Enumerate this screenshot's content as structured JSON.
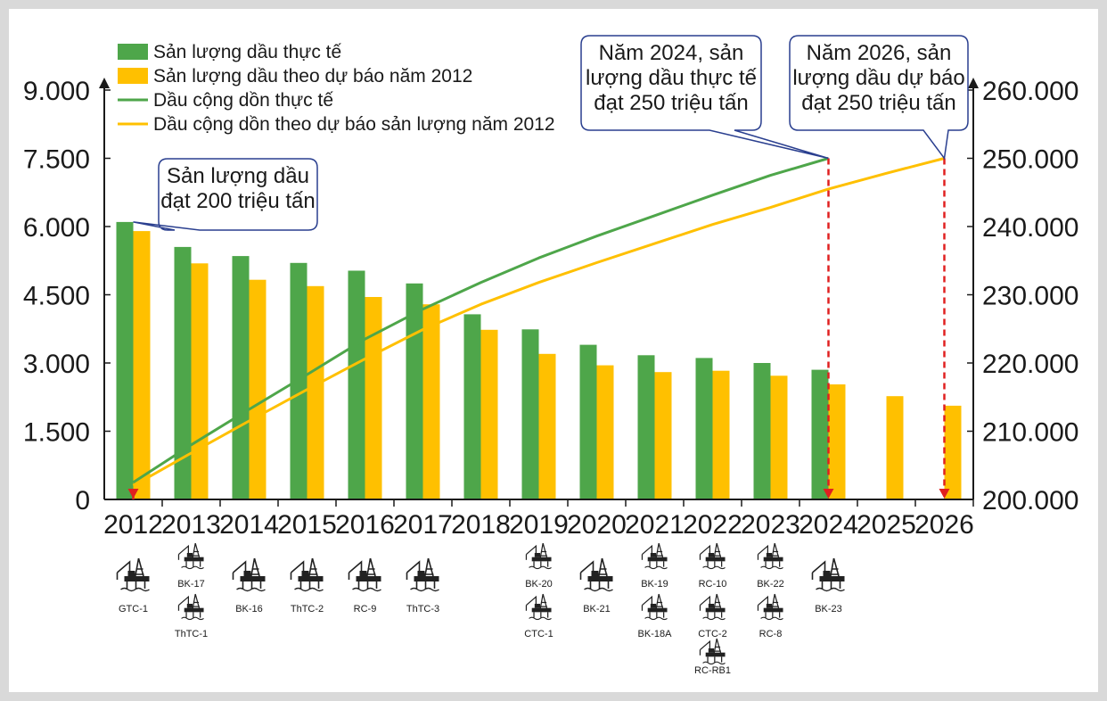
{
  "chart_data": {
    "type": "bar",
    "categories": [
      "2012",
      "2013",
      "2014",
      "2015",
      "2016",
      "2017",
      "2018",
      "2019",
      "2020",
      "2021",
      "2022",
      "2023",
      "2024",
      "2025",
      "2026"
    ],
    "y_left": {
      "range": [
        0,
        9000
      ],
      "ticks": [
        "0",
        "1.500",
        "3.000",
        "4.500",
        "6.000",
        "7.500",
        "9.000"
      ],
      "tick_values": [
        0,
        1500,
        3000,
        4500,
        6000,
        7500,
        9000
      ]
    },
    "y_right": {
      "range": [
        200000,
        260000
      ],
      "ticks": [
        "200.000",
        "210.000",
        "220.000",
        "230.000",
        "240.000",
        "250.000",
        "260.000"
      ],
      "tick_values": [
        200000,
        210000,
        220000,
        230000,
        240000,
        250000,
        260000
      ]
    },
    "series": [
      {
        "name": "Sản lượng dầu thực tế",
        "type": "bar",
        "axis": "left",
        "color": "#4ea64a",
        "values": [
          6100,
          5550,
          5350,
          5200,
          5030,
          4750,
          4070,
          3740,
          3400,
          3170,
          3110,
          3000,
          2850,
          null,
          null
        ]
      },
      {
        "name": "Sản lượng dầu theo dự báo năm 2012",
        "type": "bar",
        "axis": "left",
        "color": "#ffc000",
        "values": [
          5900,
          5190,
          4830,
          4690,
          4450,
          4290,
          3730,
          3200,
          2950,
          2800,
          2830,
          2720,
          2530,
          2270,
          2060
        ]
      },
      {
        "name": "Dầu cộng dồn thực tế",
        "type": "line",
        "axis": "right",
        "color": "#4ea64a",
        "values": [
          202500,
          208000,
          213200,
          218300,
          223500,
          227900,
          231800,
          235400,
          238600,
          241600,
          244600,
          247500,
          250000,
          null,
          null
        ]
      },
      {
        "name": "Dầu cộng dồn theo dự báo sản lượng năm 2012",
        "type": "line",
        "axis": "right",
        "color": "#ffc000",
        "values": [
          202000,
          206800,
          211500,
          216100,
          220600,
          224900,
          228600,
          231800,
          234700,
          237500,
          240300,
          242800,
          245500,
          247800,
          250000
        ]
      }
    ],
    "legend_position": "top-left",
    "grid": false
  },
  "callouts": [
    {
      "id": "c2012",
      "lines": [
        "Sản lượng dầu",
        "đạt 200 triệu tấn"
      ]
    },
    {
      "id": "c2024",
      "lines": [
        "Năm 2024, sản",
        "lượng dầu thực tế",
        "đạt 250 triệu tấn"
      ]
    },
    {
      "id": "c2026",
      "lines": [
        "Năm 2026, sản",
        "lượng dầu dự báo",
        "đạt 250 triệu tấn"
      ]
    }
  ],
  "markers": [
    {
      "category": "2012",
      "value": 200000
    },
    {
      "category": "2024",
      "value": 250000
    },
    {
      "category": "2026",
      "value": 250000
    }
  ],
  "rigs": [
    {
      "category": "2012",
      "items": [
        "GTC-1"
      ]
    },
    {
      "category": "2013",
      "items": [
        "BK-17",
        "ThTC-1"
      ]
    },
    {
      "category": "2014",
      "items": [
        "BK-16"
      ]
    },
    {
      "category": "2015",
      "items": [
        "ThTC-2"
      ]
    },
    {
      "category": "2016",
      "items": [
        "RC-9"
      ]
    },
    {
      "category": "2017",
      "items": [
        "ThTC-3"
      ]
    },
    {
      "category": "2019",
      "items": [
        "BK-20",
        "CTC-1"
      ]
    },
    {
      "category": "2020",
      "items": [
        "BK-21"
      ]
    },
    {
      "category": "2021",
      "items": [
        "BK-19",
        "BK-18A"
      ]
    },
    {
      "category": "2022",
      "items": [
        "RC-10",
        "CTC-2",
        "RC-RB1"
      ]
    },
    {
      "category": "2023",
      "items": [
        "BK-22",
        "RC-8"
      ]
    },
    {
      "category": "2024",
      "items": [
        "BK-23"
      ]
    }
  ],
  "colors": {
    "marker": "#e02020",
    "axis": "#1a1a1a",
    "callout_border": "#2a3f8f"
  }
}
